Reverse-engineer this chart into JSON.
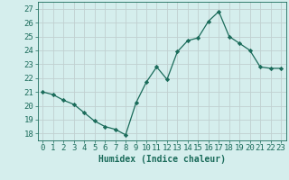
{
  "x": [
    0,
    1,
    2,
    3,
    4,
    5,
    6,
    7,
    8,
    9,
    10,
    11,
    12,
    13,
    14,
    15,
    16,
    17,
    18,
    19,
    20,
    21,
    22,
    23
  ],
  "y": [
    21.0,
    20.8,
    20.4,
    20.1,
    19.5,
    18.9,
    18.5,
    18.3,
    17.9,
    20.2,
    21.7,
    22.8,
    21.9,
    23.9,
    24.7,
    24.9,
    26.1,
    26.8,
    25.0,
    24.5,
    24.0,
    22.8,
    22.7,
    22.7
  ],
  "line_color": "#1a6b5a",
  "marker": "D",
  "marker_size": 2.2,
  "bg_color": "#d5eeed",
  "grid_color": "#c0d0d0",
  "xlabel": "Humidex (Indice chaleur)",
  "ylabel_ticks": [
    18,
    19,
    20,
    21,
    22,
    23,
    24,
    25,
    26,
    27
  ],
  "xlim": [
    -0.5,
    23.5
  ],
  "ylim": [
    17.5,
    27.5
  ],
  "xticks": [
    0,
    1,
    2,
    3,
    4,
    5,
    6,
    7,
    8,
    9,
    10,
    11,
    12,
    13,
    14,
    15,
    16,
    17,
    18,
    19,
    20,
    21,
    22,
    23
  ],
  "tick_color": "#1a6b5a",
  "label_color": "#1a6b5a",
  "font_size": 6.5,
  "xlabel_fontsize": 7.0
}
